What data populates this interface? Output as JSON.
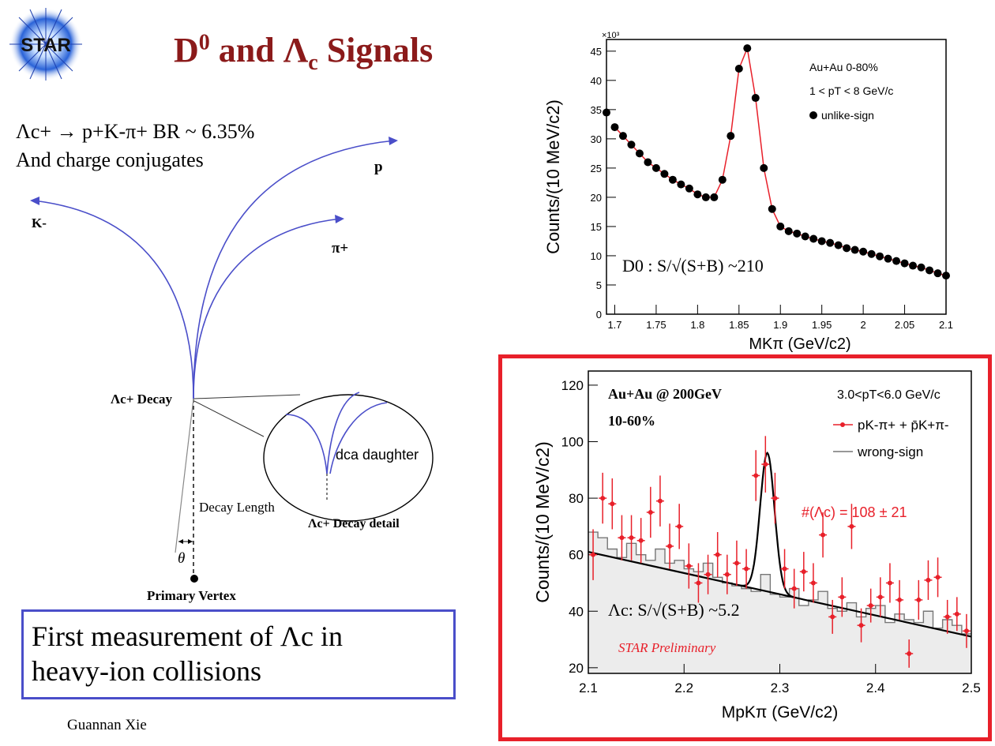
{
  "header": {
    "logo_text": "STAR",
    "title_main": "D",
    "title_sup": "0",
    "title_and": " and Λ",
    "title_sub": "c",
    "title_end": " Signals"
  },
  "decay": {
    "equation": "Λc+ → p+K-π+   BR ~ 6.35%",
    "note": "And charge conjugates",
    "labels": {
      "p": "p",
      "kaon": "K-",
      "pion": "π+",
      "lc_decay": "Λc+ Decay",
      "dca": "dca daughter",
      "decay_length": "Decay Length",
      "lc_detail": "Λc+ Decay detail",
      "theta": "θ",
      "primary_vertex": "Primary Vertex"
    }
  },
  "claim": {
    "line1": "First measurement of Λc in",
    "line2": "heavy-ion collisions"
  },
  "footer": {
    "author": "Guannan Xie"
  },
  "colors": {
    "title": "#8b1a1a",
    "track": "#4a4ec9",
    "frame_red": "#e8202a",
    "signal_red": "#e8202a",
    "fit_red": "#e8202a"
  },
  "chart_data": [
    {
      "type": "scatter",
      "xlabel": "MKπ (GeV/c2)",
      "ylabel": "Counts/(10 MeV/c2)",
      "y_multiplier": "×10³",
      "xlim": [
        1.69,
        2.1
      ],
      "ylim": [
        0,
        47
      ],
      "xticks": [
        "1.7",
        "1.75",
        "1.8",
        "1.85",
        "1.9",
        "1.95",
        "2",
        "2.05",
        "2.1"
      ],
      "yticks": [
        "0",
        "5",
        "10",
        "15",
        "20",
        "25",
        "30",
        "35",
        "40",
        "45"
      ],
      "legend": [
        "Au+Au 0-80%",
        "1 < pT < 8 GeV/c",
        "unlike-sign"
      ],
      "annotation": "D0 :  S/√(S+B)  ~210",
      "series": [
        {
          "name": "unlike-sign",
          "x": [
            1.69,
            1.7,
            1.71,
            1.72,
            1.73,
            1.74,
            1.75,
            1.76,
            1.77,
            1.78,
            1.79,
            1.8,
            1.81,
            1.82,
            1.83,
            1.84,
            1.85,
            1.86,
            1.87,
            1.88,
            1.89,
            1.9,
            1.91,
            1.92,
            1.93,
            1.94,
            1.95,
            1.96,
            1.97,
            1.98,
            1.99,
            2.0,
            2.01,
            2.02,
            2.03,
            2.04,
            2.05,
            2.06,
            2.07,
            2.08,
            2.09,
            2.1
          ],
          "y": [
            34.5,
            32.0,
            30.5,
            29.0,
            27.5,
            26.0,
            25.0,
            24.0,
            23.0,
            22.2,
            21.5,
            20.5,
            20.0,
            20.0,
            23.0,
            30.5,
            42.0,
            45.5,
            37.0,
            25.0,
            18.0,
            15.0,
            14.2,
            13.8,
            13.3,
            12.9,
            12.5,
            12.2,
            11.8,
            11.3,
            11.0,
            10.7,
            10.3,
            9.9,
            9.5,
            9.1,
            8.7,
            8.3,
            8.0,
            7.5,
            7.0,
            6.6
          ]
        }
      ]
    },
    {
      "type": "scatter",
      "xlabel": "MpKπ (GeV/c2)",
      "ylabel": "Counts/(10 MeV/c2)",
      "xlim": [
        2.1,
        2.5
      ],
      "ylim": [
        18,
        125
      ],
      "xticks": [
        "2.1",
        "2.2",
        "2.3",
        "2.4",
        "2.5"
      ],
      "yticks": [
        "20",
        "40",
        "60",
        "80",
        "100",
        "120"
      ],
      "text_top_left": [
        "Au+Au @ 200GeV",
        "10-60%"
      ],
      "legend": [
        "3.0<pT<6.0 GeV/c",
        "pK-π+ + p̄K+π-",
        "wrong-sign"
      ],
      "annotation_yield": "#(Λc) = 108 ± 21",
      "annotation_sig": "Λc:  S/√(S+B)  ~5.2",
      "annotation_prelim": "STAR Preliminary",
      "series": [
        {
          "name": "pK-π+ + p̄K+π-",
          "x": [
            2.105,
            2.115,
            2.125,
            2.135,
            2.145,
            2.155,
            2.165,
            2.175,
            2.185,
            2.195,
            2.205,
            2.215,
            2.225,
            2.235,
            2.245,
            2.255,
            2.265,
            2.275,
            2.285,
            2.295,
            2.305,
            2.315,
            2.325,
            2.335,
            2.345,
            2.355,
            2.365,
            2.375,
            2.385,
            2.395,
            2.405,
            2.415,
            2.425,
            2.435,
            2.445,
            2.455,
            2.465,
            2.475,
            2.485,
            2.495
          ],
          "y": [
            60,
            80,
            78,
            66,
            66,
            65,
            75,
            79,
            63,
            70,
            56,
            50,
            53,
            60,
            53,
            57,
            55,
            88,
            92,
            80,
            55,
            48,
            54,
            50,
            67,
            38,
            45,
            70,
            35,
            42,
            45,
            50,
            44,
            25,
            44,
            51,
            52,
            38,
            39,
            33
          ],
          "err": [
            9,
            9,
            9,
            8,
            8,
            8,
            9,
            9,
            8,
            8,
            8,
            7,
            7,
            8,
            7,
            8,
            7,
            9,
            10,
            9,
            7,
            7,
            7,
            7,
            8,
            6,
            7,
            8,
            6,
            6,
            7,
            7,
            7,
            5,
            7,
            7,
            7,
            6,
            6,
            6
          ]
        },
        {
          "name": "wrong-sign",
          "x": [
            2.105,
            2.115,
            2.125,
            2.135,
            2.145,
            2.155,
            2.165,
            2.175,
            2.185,
            2.195,
            2.205,
            2.215,
            2.225,
            2.235,
            2.245,
            2.255,
            2.265,
            2.275,
            2.285,
            2.295,
            2.305,
            2.315,
            2.325,
            2.335,
            2.345,
            2.355,
            2.365,
            2.375,
            2.385,
            2.395,
            2.405,
            2.415,
            2.425,
            2.435,
            2.445,
            2.455,
            2.465,
            2.475,
            2.485,
            2.495
          ],
          "y": [
            68,
            66,
            62,
            59,
            64,
            60,
            58,
            62,
            57,
            58,
            55,
            54,
            57,
            52,
            50,
            49,
            48,
            47,
            53,
            46,
            45,
            48,
            42,
            44,
            47,
            41,
            40,
            43,
            38,
            41,
            42,
            36,
            39,
            37,
            36,
            40,
            34,
            37,
            35,
            32
          ]
        }
      ],
      "fit": {
        "line_start": [
          2.1,
          61
        ],
        "line_end": [
          2.5,
          31
        ],
        "peak_x": 2.287,
        "peak_y": 96
      }
    }
  ]
}
